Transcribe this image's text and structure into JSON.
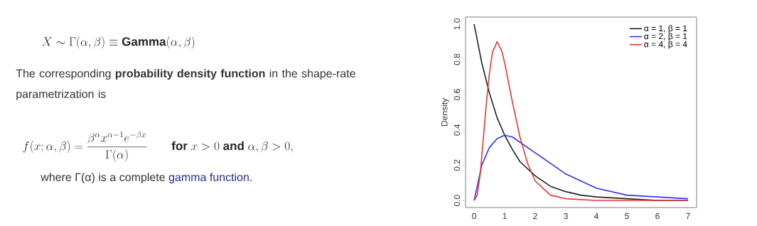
{
  "chart_data": {
    "type": "line",
    "ylabel": "Density",
    "annotations": [
      "X \\sim \\Gamma(\\alpha, \\beta) \\equiv \\mathbf{Gamma}(\\alpha, \\beta)",
      "The corresponding **probability density function** in the shape-rate parametrization is",
      "f(x; \\alpha, \\beta) = \\frac{\\beta^{\\alpha} x^{\\alpha-1} e^{-\\beta x}}{\\Gamma(\\alpha)} \\qquad \\mathbf{for}\\ x > 0\\ \\mathbf{and}\\ \\alpha, \\beta > 0,",
      "where Γ(α) is a complete",
      "gamma function."
    ],
    "series": [
      {
        "name": "α = 1, β = 1",
        "color": "#222222",
        "x": [
          0,
          0.25,
          0.5,
          0.75,
          1,
          1.25,
          1.5,
          2,
          2.5,
          3,
          3.5,
          4,
          5,
          6,
          7
        ],
        "values": [
          1,
          0.78,
          0.61,
          0.47,
          0.37,
          0.29,
          0.22,
          0.14,
          0.08,
          0.05,
          0.03,
          0.02,
          0.01,
          0,
          0
        ]
      },
      {
        "name": "α = 2, β = 1",
        "color": "#3333ee",
        "x": [
          0,
          0.25,
          0.5,
          0.75,
          1,
          1.25,
          1.5,
          2,
          2.5,
          3,
          3.5,
          4,
          5,
          6,
          7
        ],
        "values": [
          0,
          0.2,
          0.3,
          0.35,
          0.37,
          0.36,
          0.33,
          0.27,
          0.21,
          0.15,
          0.11,
          0.07,
          0.03,
          0.02,
          0.01
        ]
      },
      {
        "name": "α = 4, β = 4",
        "color": "#ee3333",
        "x": [
          0,
          0.1,
          0.2,
          0.3,
          0.4,
          0.5,
          0.6,
          0.75,
          0.9,
          1,
          1.25,
          1.5,
          1.75,
          2,
          2.5,
          3,
          4,
          5,
          6,
          7
        ],
        "values": [
          0,
          0.03,
          0.15,
          0.35,
          0.55,
          0.72,
          0.84,
          0.9,
          0.85,
          0.78,
          0.56,
          0.36,
          0.21,
          0.11,
          0.03,
          0.01,
          0,
          0,
          0,
          0
        ]
      }
    ],
    "xlim": [
      -0.28,
      7.28
    ],
    "ylim": [
      -0.04,
      1.04
    ],
    "xticks": [
      0,
      1,
      2,
      3,
      4,
      5,
      6,
      7
    ],
    "yticks": [
      {
        "value": 0,
        "label": "0.0"
      },
      {
        "value": 0.2,
        "label": "0.2"
      },
      {
        "value": 0.4,
        "label": "0.4"
      },
      {
        "value": 0.6,
        "label": "0.6"
      },
      {
        "value": 0.8,
        "label": "0.8"
      },
      {
        "value": 1,
        "label": "1.0"
      }
    ],
    "legend": "top right",
    "grid": false,
    "line_style": "solid",
    "marker": "none"
  }
}
